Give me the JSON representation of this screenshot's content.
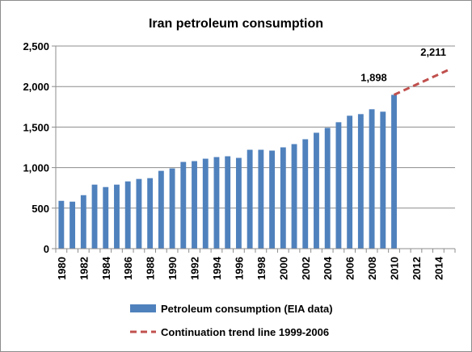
{
  "chart_data": {
    "type": "bar",
    "title": "Iran petroleum consumption",
    "xlabel": "",
    "ylabel": "",
    "ylim": [
      0,
      2500
    ],
    "yticks": [
      "0",
      "500",
      "1,000",
      "1,500",
      "2,000",
      "2,500"
    ],
    "categories": [
      "1980",
      "1981",
      "1982",
      "1983",
      "1984",
      "1985",
      "1986",
      "1987",
      "1988",
      "1989",
      "1990",
      "1991",
      "1992",
      "1993",
      "1994",
      "1995",
      "1996",
      "1997",
      "1998",
      "1999",
      "2000",
      "2001",
      "2002",
      "2003",
      "2004",
      "2005",
      "2006",
      "2007",
      "2008",
      "2009",
      "2010",
      "2011",
      "2012",
      "2013",
      "2014",
      "2015"
    ],
    "xtick_labels": [
      "1980",
      "1982",
      "1984",
      "1986",
      "1988",
      "1990",
      "1992",
      "1994",
      "1996",
      "1998",
      "2000",
      "2002",
      "2004",
      "2006",
      "2008",
      "2010",
      "2012",
      "2014"
    ],
    "grid": true,
    "legend_position": "bottom",
    "series": [
      {
        "name": "Petroleum consumption (EIA data)",
        "type": "bar",
        "color": "#4f81bd",
        "values": [
          590,
          580,
          660,
          790,
          760,
          790,
          830,
          860,
          870,
          960,
          990,
          1070,
          1080,
          1110,
          1130,
          1140,
          1120,
          1220,
          1220,
          1210,
          1250,
          1290,
          1350,
          1430,
          1490,
          1560,
          1640,
          1660,
          1720,
          1690,
          1898,
          null,
          null,
          null,
          null,
          null
        ]
      },
      {
        "name": "Continuation trend line 1999-2006",
        "type": "line",
        "color": "#c0504d",
        "dash": true,
        "x": [
          "2010",
          "2015"
        ],
        "values": [
          1898,
          2211
        ]
      }
    ],
    "annotations": [
      {
        "text": "1,898",
        "x": "2010",
        "y": 1898
      },
      {
        "text": "2,211",
        "x": "2015",
        "y": 2211
      }
    ]
  }
}
